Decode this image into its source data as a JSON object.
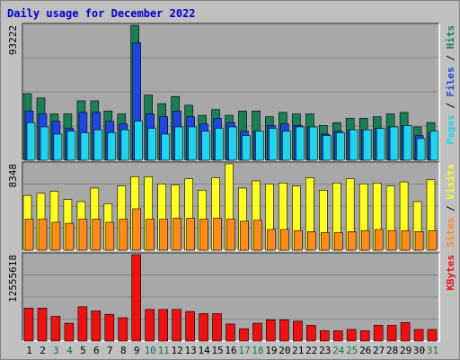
{
  "title": "Daily usage for December 2022",
  "colors": {
    "hits": "#1a7f55",
    "files": "#1f47e0",
    "pages": "#22d3ee",
    "visits": "#ffff22",
    "sites": "#ff8c1a",
    "kbytes": "#ee1111",
    "weekend_day": "#117744",
    "weekday_day": "#000000",
    "plot_bg": "#a8a8a8",
    "gridline": "#8a8a8a"
  },
  "chart_data": [
    {
      "type": "bar",
      "title": "Daily usage for December 2022",
      "x": [
        1,
        2,
        3,
        4,
        5,
        6,
        7,
        8,
        9,
        10,
        11,
        12,
        13,
        14,
        15,
        16,
        17,
        18,
        19,
        20,
        21,
        22,
        23,
        24,
        25,
        26,
        27,
        28,
        29,
        30,
        31
      ],
      "weekend_days": [
        3,
        4,
        10,
        11,
        17,
        18,
        24,
        25,
        31
      ],
      "y_max_label": "93222",
      "ylim": [
        0,
        93222
      ],
      "legend": [
        "Pages",
        "Files",
        "Hits"
      ],
      "legend_position": "right",
      "series": [
        {
          "name": "Hits",
          "values": [
            46000,
            43000,
            32000,
            32000,
            41000,
            41000,
            34000,
            32000,
            93222,
            45000,
            39000,
            44000,
            38000,
            31000,
            35000,
            31000,
            34000,
            34000,
            30000,
            33000,
            32000,
            32000,
            24000,
            26000,
            29000,
            29000,
            30000,
            32000,
            33000,
            23000,
            26000
          ]
        },
        {
          "name": "Files",
          "values": [
            34000,
            32000,
            27000,
            22000,
            33000,
            33000,
            27000,
            25000,
            81000,
            32000,
            30000,
            34000,
            30000,
            25000,
            29000,
            26000,
            20000,
            20000,
            24000,
            25000,
            24000,
            23000,
            18000,
            20000,
            21000,
            21000,
            22000,
            23000,
            24000,
            17000,
            19000
          ]
        },
        {
          "name": "Pages",
          "values": [
            26000,
            23000,
            18000,
            20000,
            19000,
            21000,
            19000,
            21000,
            27000,
            22000,
            18000,
            23000,
            23000,
            20000,
            22000,
            23000,
            17000,
            20000,
            22000,
            20000,
            23000,
            23000,
            17000,
            19000,
            21000,
            21000,
            22000,
            23000,
            24000,
            15000,
            20000
          ]
        }
      ]
    },
    {
      "type": "bar",
      "x": [
        1,
        2,
        3,
        4,
        5,
        6,
        7,
        8,
        9,
        10,
        11,
        12,
        13,
        14,
        15,
        16,
        17,
        18,
        19,
        20,
        21,
        22,
        23,
        24,
        25,
        26,
        27,
        28,
        29,
        30,
        31
      ],
      "y_max_label": "8348",
      "ylim": [
        0,
        8348
      ],
      "legend": [
        "Sites",
        "Visits"
      ],
      "legend_position": "right",
      "series": [
        {
          "name": "Visits",
          "values": [
            5300,
            5500,
            5700,
            4900,
            4700,
            6000,
            4500,
            6200,
            7100,
            7100,
            6400,
            6300,
            6900,
            5800,
            7000,
            8348,
            6000,
            6700,
            6400,
            6500,
            6200,
            7000,
            5800,
            6500,
            6900,
            6400,
            6500,
            6200,
            6600,
            4700,
            6800
          ]
        },
        {
          "name": "Sites",
          "values": [
            3000,
            3000,
            2700,
            2600,
            3000,
            3000,
            2700,
            3000,
            4000,
            3000,
            3000,
            3100,
            3100,
            3000,
            3100,
            3000,
            2800,
            2900,
            2000,
            2000,
            1900,
            1800,
            1700,
            1700,
            1800,
            1900,
            2000,
            1900,
            1900,
            1800,
            1900
          ]
        }
      ]
    },
    {
      "type": "bar",
      "x": [
        1,
        2,
        3,
        4,
        5,
        6,
        7,
        8,
        9,
        10,
        11,
        12,
        13,
        14,
        15,
        16,
        17,
        18,
        19,
        20,
        21,
        22,
        23,
        24,
        25,
        26,
        27,
        28,
        29,
        30,
        31
      ],
      "y_max_label": "12555618",
      "ylim": [
        0,
        12555618
      ],
      "legend": [
        "KBytes"
      ],
      "legend_position": "right",
      "series": [
        {
          "name": "KBytes",
          "values": [
            4800000,
            4800000,
            3600000,
            2600000,
            5000000,
            4400000,
            3900000,
            3400000,
            12555618,
            4600000,
            4600000,
            4600000,
            4300000,
            4000000,
            4000000,
            2500000,
            1800000,
            2600000,
            3100000,
            3100000,
            2900000,
            2300000,
            1500000,
            1500000,
            1700000,
            1500000,
            2300000,
            2300000,
            2700000,
            1700000,
            1700000
          ]
        }
      ]
    }
  ]
}
